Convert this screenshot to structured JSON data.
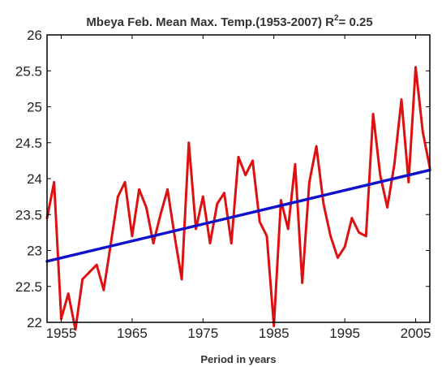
{
  "chart_data": {
    "type": "line",
    "title": "Mbeya Feb. Mean Max. Temp.(1953-2007) R",
    "title_sup": "2",
    "title_suffix": "= 0.25",
    "xlabel": "Period in years",
    "ylabel": "",
    "xlim": [
      1953,
      2007
    ],
    "ylim": [
      22,
      26
    ],
    "xticks": [
      1955,
      1965,
      1975,
      1985,
      1995,
      2005
    ],
    "yticks": [
      "22",
      "22.5",
      "23",
      "23.5",
      "24",
      "24.5",
      "25",
      "25.5",
      "26"
    ],
    "grid": false,
    "series": [
      {
        "color": "#dd1111",
        "x": [
          1953,
          1954,
          1955,
          1956,
          1957,
          1958,
          1959,
          1960,
          1961,
          1962,
          1963,
          1964,
          1965,
          1966,
          1967,
          1968,
          1969,
          1970,
          1971,
          1972,
          1973,
          1974,
          1975,
          1976,
          1977,
          1978,
          1979,
          1980,
          1981,
          1982,
          1983,
          1984,
          1985,
          1986,
          1987,
          1988,
          1989,
          1990,
          1991,
          1992,
          1993,
          1994,
          1995,
          1996,
          1997,
          1998,
          1999,
          2000,
          2001,
          2002,
          2003,
          2004,
          2005,
          2006,
          2007
        ],
        "values": [
          23.45,
          23.95,
          22.05,
          22.4,
          21.9,
          22.6,
          22.7,
          22.8,
          22.45,
          23.1,
          23.75,
          23.95,
          23.2,
          23.85,
          23.6,
          23.1,
          23.5,
          23.85,
          23.2,
          22.6,
          24.5,
          23.3,
          23.75,
          23.1,
          23.65,
          23.8,
          23.1,
          24.3,
          24.05,
          24.25,
          23.4,
          23.2,
          21.95,
          23.7,
          23.3,
          24.2,
          22.55,
          23.95,
          24.45,
          23.65,
          23.2,
          22.9,
          23.05,
          23.45,
          23.25,
          23.2,
          24.9,
          24.05,
          23.6,
          24.2,
          25.1,
          23.95,
          25.55,
          24.65,
          24.15
        ]
      },
      {
        "color": "#1111cc",
        "x": [
          1953,
          2007
        ],
        "values": [
          22.85,
          24.12
        ]
      }
    ]
  }
}
